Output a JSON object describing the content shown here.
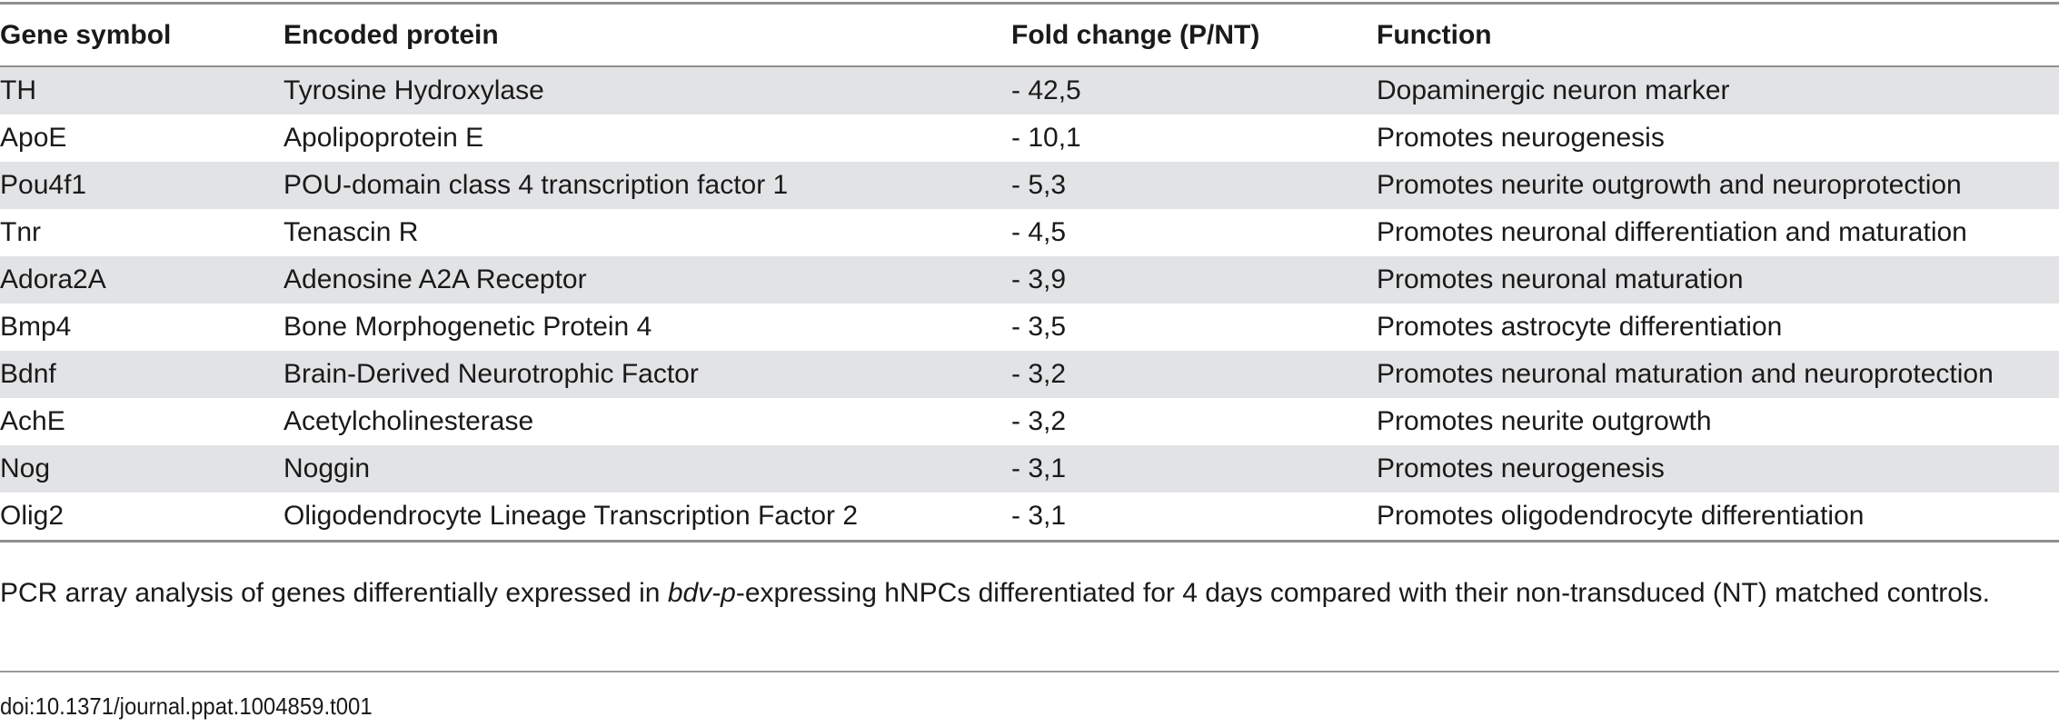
{
  "table": {
    "headers": [
      "Gene symbol",
      "Encoded protein",
      "Fold change (P/NT)",
      "Function"
    ],
    "rows": [
      [
        "TH",
        "Tyrosine Hydroxylase",
        "- 42,5",
        "Dopaminergic neuron marker"
      ],
      [
        "ApoE",
        "Apolipoprotein E",
        "- 10,1",
        "Promotes neurogenesis"
      ],
      [
        "Pou4f1",
        "POU-domain class 4 transcription factor 1",
        "- 5,3",
        "Promotes neurite outgrowth and neuroprotection"
      ],
      [
        "Tnr",
        "Tenascin R",
        "- 4,5",
        "Promotes neuronal differentiation and maturation"
      ],
      [
        "Adora2A",
        "Adenosine A2A Receptor",
        "- 3,9",
        "Promotes neuronal maturation"
      ],
      [
        "Bmp4",
        "Bone Morphogenetic Protein 4",
        "- 3,5",
        "Promotes astrocyte differentiation"
      ],
      [
        "Bdnf",
        "Brain-Derived Neurotrophic Factor",
        "- 3,2",
        "Promotes neuronal maturation and neuroprotection"
      ],
      [
        "AchE",
        "Acetylcholinesterase",
        "- 3,2",
        "Promotes neurite outgrowth"
      ],
      [
        "Nog",
        "Noggin",
        "- 3,1",
        "Promotes neurogenesis"
      ],
      [
        "Olig2",
        "Oligodendrocyte Lineage Transcription Factor 2",
        "- 3,1",
        "Promotes oligodendrocyte differentiation"
      ]
    ]
  },
  "caption": {
    "before": "PCR array analysis of genes differentially expressed in ",
    "italic": "bdv-p",
    "after": "-expressing hNPCs differentiated for 4 days compared with their non-transduced (NT) matched controls."
  },
  "doi": "doi:10.1371/journal.ppat.1004859.t001",
  "colors": {
    "row_shade": "#e2e3e5",
    "rule": "#8f8f8f",
    "text": "#1a1a1a"
  }
}
